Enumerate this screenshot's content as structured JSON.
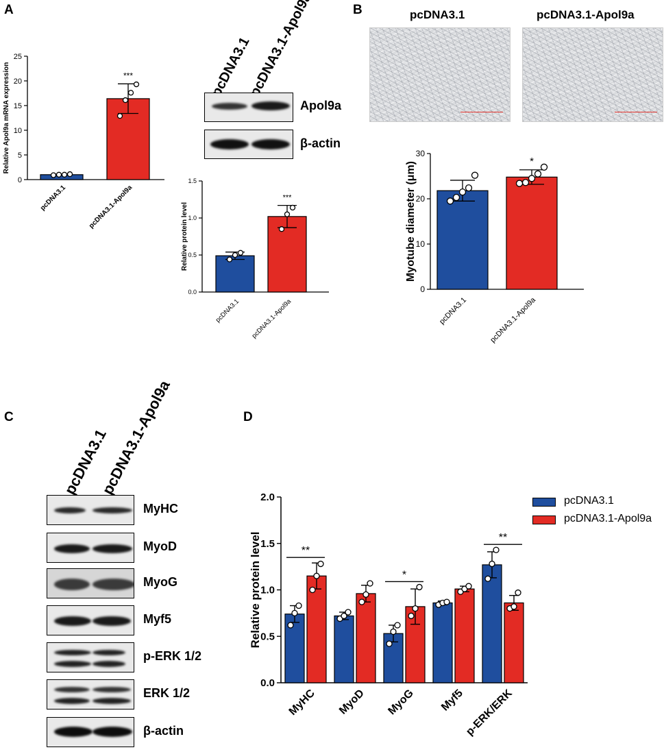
{
  "panels": {
    "A": "A",
    "B": "B",
    "C": "C",
    "D": "D"
  },
  "colors": {
    "control": "#1f4e9e",
    "treatment": "#e32b24"
  },
  "lanes": {
    "control": "pcDNA3.1",
    "treatment": "pcDNA3.1-Apol9a"
  },
  "blotA": {
    "proteins": [
      "Apol9a",
      "β-actin"
    ]
  },
  "blotC": {
    "proteins": [
      "MyHC",
      "MyoD",
      "MyoG",
      "Myf5",
      "p-ERK 1/2",
      "ERK 1/2",
      "β-actin"
    ]
  },
  "micrographs": {
    "left_title": "pcDNA3.1",
    "right_title": "pcDNA3.1-Apol9a"
  },
  "legend": {
    "control": "pcDNA3.1",
    "treatment": "pcDNA3.1-Apol9a"
  },
  "chart_data": [
    {
      "id": "A-mrna",
      "type": "bar",
      "categories": [
        "pcDNA3.1",
        "pcDNA3.1-Apol9a"
      ],
      "values": [
        1.0,
        16.4
      ],
      "errors": [
        0.1,
        3.0
      ],
      "points": [
        [
          0.9,
          1.0,
          1.0,
          1.1
        ],
        [
          12.9,
          16.1,
          17.6,
          19.3
        ]
      ],
      "significance": [
        "",
        "***"
      ],
      "ylabel": "Relative Apol9a mRNA expression",
      "ylim": [
        0,
        25
      ],
      "yticks": [
        0,
        5,
        10,
        15,
        20,
        25
      ],
      "grid": false
    },
    {
      "id": "A-protein",
      "type": "bar",
      "categories": [
        "pcDNA3.1",
        "pcDNA3.1-Apol9a"
      ],
      "values": [
        0.49,
        1.02
      ],
      "errors": [
        0.05,
        0.15
      ],
      "points": [
        [
          0.44,
          0.5,
          0.53
        ],
        [
          0.85,
          1.05,
          1.14
        ]
      ],
      "significance": [
        "",
        "***"
      ],
      "ylabel": "Relative protein level",
      "ylim": [
        0,
        1.5
      ],
      "yticks": [
        "0.0",
        "0.5",
        "1.0",
        "1.5"
      ],
      "grid": false
    },
    {
      "id": "B-diameter",
      "type": "bar",
      "categories": [
        "pcDNA3.1",
        "pcDNA3.1-Apol9a"
      ],
      "values": [
        21.8,
        24.8
      ],
      "errors": [
        2.3,
        1.6
      ],
      "points": [
        [
          19.5,
          20.3,
          21.5,
          22.4,
          25.2
        ],
        [
          23.4,
          23.6,
          24.5,
          25.5,
          27.0
        ]
      ],
      "significance": [
        "",
        "*"
      ],
      "ylabel": "Myotube diameter (μm)",
      "ylim": [
        0,
        30
      ],
      "yticks": [
        0,
        10,
        20,
        30
      ],
      "grid": false
    },
    {
      "id": "D-quant",
      "type": "bar",
      "categories": [
        "MyHC",
        "MyoD",
        "MyoG",
        "Myf5",
        "p-ERK/ERK"
      ],
      "series": [
        {
          "name": "pcDNA3.1",
          "values": [
            0.74,
            0.72,
            0.53,
            0.86,
            1.27
          ],
          "errors": [
            0.09,
            0.04,
            0.09,
            0.02,
            0.14
          ],
          "points": [
            [
              0.62,
              0.75,
              0.83
            ],
            [
              0.69,
              0.72,
              0.76
            ],
            [
              0.42,
              0.55,
              0.62
            ],
            [
              0.84,
              0.86,
              0.87
            ],
            [
              1.12,
              1.28,
              1.43
            ]
          ]
        },
        {
          "name": "pcDNA3.1-Apol9a",
          "values": [
            1.15,
            0.96,
            0.82,
            1.01,
            0.86
          ],
          "errors": [
            0.14,
            0.09,
            0.19,
            0.03,
            0.08
          ],
          "points": [
            [
              1.0,
              1.15,
              1.28
            ],
            [
              0.87,
              0.95,
              1.07
            ],
            [
              0.72,
              0.8,
              1.03
            ],
            [
              0.98,
              1.01,
              1.04
            ],
            [
              0.8,
              0.82,
              0.97
            ]
          ]
        }
      ],
      "significance": [
        {
          "category": 0,
          "label": "**"
        },
        {
          "category": 2,
          "label": "*"
        },
        {
          "category": 4,
          "label": "**"
        }
      ],
      "ylabel": "Relative protein level",
      "ylim": [
        0,
        2.0
      ],
      "yticks": [
        "0.0",
        "0.5",
        "1.0",
        "1.5",
        "2.0"
      ],
      "grid": false,
      "legend": "top-right"
    }
  ]
}
